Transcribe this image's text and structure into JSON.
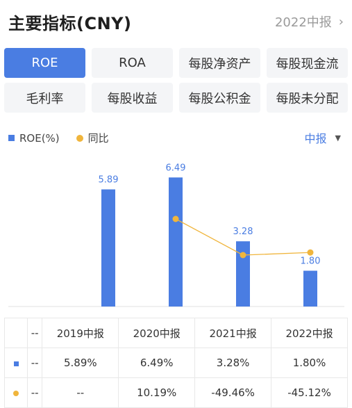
{
  "header": {
    "title": "主要指标(CNY)",
    "period_label": "2022中报",
    "chevron": "›"
  },
  "tabs": [
    {
      "label": "ROE",
      "active": true
    },
    {
      "label": "ROA"
    },
    {
      "label": "每股净资产"
    },
    {
      "label": "每股现金流"
    },
    {
      "label": "毛利率"
    },
    {
      "label": "每股收益"
    },
    {
      "label": "每股公积金"
    },
    {
      "label": "每股未分配"
    }
  ],
  "legend": {
    "bar_label": "ROE(%)",
    "line_label": "同比"
  },
  "period_select": {
    "label": "中报",
    "arrow": "▼"
  },
  "colors": {
    "bar": "#4a7de2",
    "line": "#f0b53c",
    "positive": "#e5373b",
    "negative": "#2a9d3f"
  },
  "chart_data": {
    "type": "bar",
    "categories": [
      "2019中报",
      "2020中报",
      "2021中报",
      "2022中报"
    ],
    "series": [
      {
        "name": "ROE(%)",
        "type": "bar",
        "values": [
          5.89,
          6.49,
          3.28,
          1.8
        ],
        "labels": [
          "5.89",
          "6.49",
          "3.28",
          "1.80"
        ]
      },
      {
        "name": "同比",
        "type": "line",
        "values": [
          null,
          10.19,
          -49.46,
          -45.12
        ]
      }
    ],
    "legend_position": "top-left"
  },
  "table": {
    "header": [
      "--",
      "2019中报",
      "2020中报",
      "2021中报",
      "2022中报"
    ],
    "rows": [
      {
        "marker": "bar",
        "cells": [
          "--",
          "5.89%",
          "6.49%",
          "3.28%",
          "1.80%"
        ]
      },
      {
        "marker": "line",
        "cells": [
          "--",
          "--",
          "10.19%",
          "-49.46%",
          "-45.12%"
        ]
      }
    ]
  }
}
